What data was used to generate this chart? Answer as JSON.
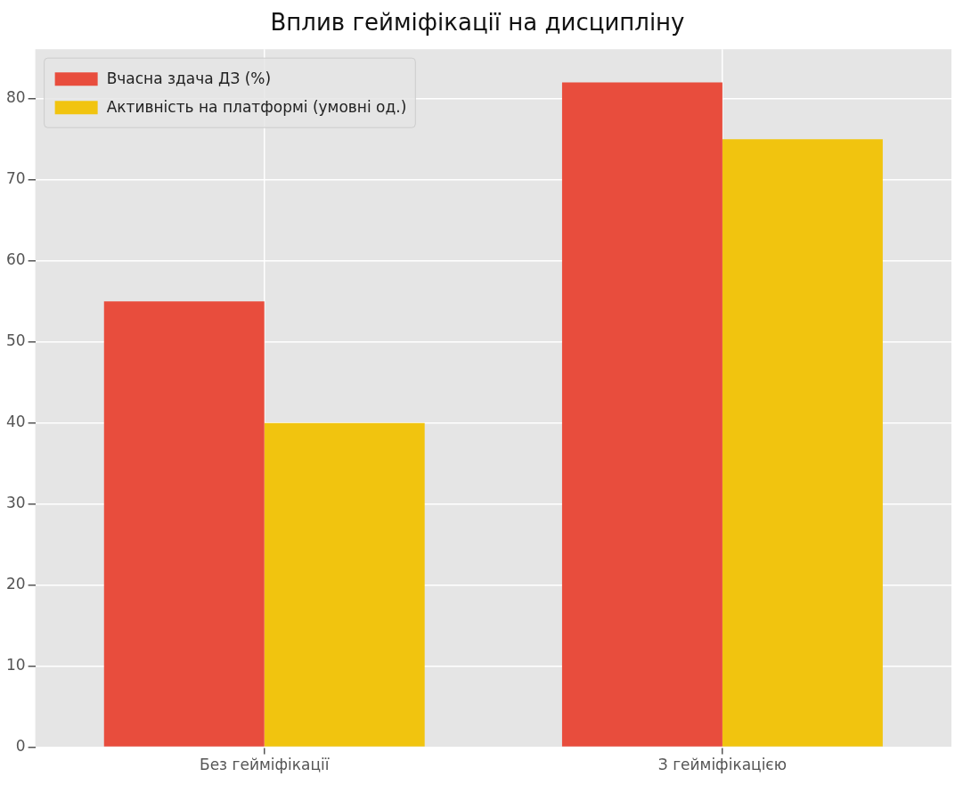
{
  "chart_data": {
    "type": "bar",
    "title": "Вплив гейміфікації на дисципліну",
    "categories": [
      "Без гейміфікації",
      "З гейміфікацією"
    ],
    "series": [
      {
        "name": "Вчасна здача ДЗ (%)",
        "color": "#e84d3d",
        "values": [
          55,
          82
        ]
      },
      {
        "name": "Активність на платформі (умовні од.)",
        "color": "#f1c40f",
        "values": [
          40,
          75
        ]
      }
    ],
    "ylim": [
      0,
      86.1
    ],
    "yticks": [
      0,
      10,
      20,
      30,
      40,
      50,
      60,
      70,
      80
    ],
    "grid": true,
    "legend": "top left"
  }
}
